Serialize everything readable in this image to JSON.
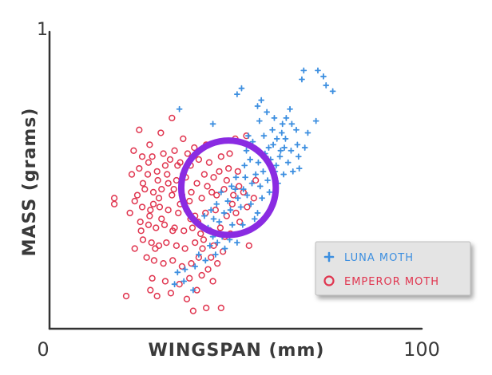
{
  "chart_data": {
    "type": "scatter",
    "title": "",
    "xlabel": "WINGSPAN (mm)",
    "ylabel": "MASS (grams)",
    "xlim": [
      0,
      100
    ],
    "ylim": [
      0,
      1
    ],
    "x_ticks": [
      "0",
      "100"
    ],
    "y_ticks": [
      "1"
    ],
    "grid": false,
    "legend": "bottom-right",
    "series": [
      {
        "name": "LUNA MOTH",
        "marker": "plus",
        "color": "#3d8fe0",
        "points": [
          [
            72.1,
            0.87
          ],
          [
            73.6,
            0.85
          ],
          [
            74.3,
            0.82
          ],
          [
            76.1,
            0.8
          ],
          [
            68.3,
            0.87
          ],
          [
            67.8,
            0.84
          ],
          [
            64.6,
            0.74
          ],
          [
            63.6,
            0.71
          ],
          [
            65.1,
            0.69
          ],
          [
            62.6,
            0.69
          ],
          [
            66.3,
            0.67
          ],
          [
            69.4,
            0.66
          ],
          [
            71.6,
            0.7
          ],
          [
            61.1,
            0.64
          ],
          [
            60.1,
            0.62
          ],
          [
            63.1,
            0.61
          ],
          [
            57.9,
            0.59
          ],
          [
            56.1,
            0.56
          ],
          [
            58.1,
            0.58
          ],
          [
            59.4,
            0.57
          ],
          [
            61.9,
            0.58
          ],
          [
            64.1,
            0.56
          ],
          [
            60.6,
            0.53
          ],
          [
            62.9,
            0.52
          ],
          [
            65.4,
            0.53
          ],
          [
            57.4,
            0.53
          ],
          [
            55.4,
            0.52
          ],
          [
            52.6,
            0.51
          ],
          [
            54.4,
            0.49
          ],
          [
            56.6,
            0.48
          ],
          [
            58.6,
            0.5
          ],
          [
            61.4,
            0.49
          ],
          [
            52.1,
            0.47
          ],
          [
            49.9,
            0.47
          ],
          [
            53.1,
            0.45
          ],
          [
            50.6,
            0.44
          ],
          [
            47.9,
            0.43
          ],
          [
            48.6,
            0.4
          ],
          [
            51.4,
            0.41
          ],
          [
            54.1,
            0.42
          ],
          [
            55.9,
            0.39
          ],
          [
            46.9,
            0.39
          ],
          [
            44.1,
            0.37
          ],
          [
            45.6,
            0.36
          ],
          [
            49.1,
            0.35
          ],
          [
            51.9,
            0.35
          ],
          [
            54.9,
            0.34
          ],
          [
            42.6,
            0.34
          ],
          [
            43.9,
            0.31
          ],
          [
            46.4,
            0.31
          ],
          [
            48.4,
            0.3
          ],
          [
            50.4,
            0.29
          ],
          [
            47.1,
            0.27
          ],
          [
            44.6,
            0.25
          ],
          [
            41.9,
            0.23
          ],
          [
            39.1,
            0.21
          ],
          [
            36.4,
            0.2
          ],
          [
            34.4,
            0.19
          ],
          [
            33.6,
            0.15
          ],
          [
            36.1,
            0.16
          ],
          [
            38.6,
            0.13
          ],
          [
            40.1,
            0.25
          ],
          [
            55.1,
            0.37
          ],
          [
            57.1,
            0.44
          ],
          [
            59.1,
            0.46
          ],
          [
            60.9,
            0.55
          ],
          [
            62.1,
            0.6
          ],
          [
            63.4,
            0.64
          ],
          [
            64.9,
            0.6
          ],
          [
            66.9,
            0.58
          ],
          [
            68.6,
            0.61
          ],
          [
            66.6,
            0.62
          ],
          [
            67.1,
            0.54
          ],
          [
            62.4,
            0.66
          ],
          [
            59.9,
            0.67
          ],
          [
            58.9,
            0.61
          ],
          [
            57.6,
            0.65
          ],
          [
            55.6,
            0.6
          ],
          [
            53.9,
            0.57
          ],
          [
            52.4,
            0.55
          ],
          [
            50.1,
            0.51
          ],
          [
            48.9,
            0.48
          ],
          [
            46.1,
            0.46
          ],
          [
            44.9,
            0.42
          ],
          [
            43.4,
            0.4
          ],
          [
            41.6,
            0.38
          ],
          [
            45.1,
            0.29
          ],
          [
            43.1,
            0.28
          ],
          [
            34.9,
            0.74
          ],
          [
            43.9,
            0.69
          ],
          [
            50.4,
            0.79
          ],
          [
            51.6,
            0.81
          ],
          [
            56.9,
            0.77
          ],
          [
            55.9,
            0.75
          ],
          [
            58.4,
            0.73
          ],
          [
            60.4,
            0.71
          ],
          [
            53.4,
            0.65
          ],
          [
            54.6,
            0.63
          ],
          [
            56.4,
            0.7
          ],
          [
            52.9,
            0.6
          ]
        ]
      },
      {
        "name": "EMPEROR MOTH",
        "marker": "circle",
        "color": "#e0354f",
        "points": [
          [
            24.1,
            0.67
          ],
          [
            26.9,
            0.62
          ],
          [
            29.9,
            0.66
          ],
          [
            32.9,
            0.71
          ],
          [
            35.9,
            0.64
          ],
          [
            38.9,
            0.61
          ],
          [
            42.1,
            0.62
          ],
          [
            49.9,
            0.64
          ],
          [
            52.9,
            0.65
          ],
          [
            22.6,
            0.6
          ],
          [
            24.9,
            0.58
          ],
          [
            27.6,
            0.58
          ],
          [
            30.6,
            0.59
          ],
          [
            32.4,
            0.57
          ],
          [
            35.1,
            0.56
          ],
          [
            37.9,
            0.55
          ],
          [
            40.1,
            0.57
          ],
          [
            42.9,
            0.56
          ],
          [
            46.1,
            0.58
          ],
          [
            24.1,
            0.54
          ],
          [
            26.4,
            0.52
          ],
          [
            28.9,
            0.53
          ],
          [
            31.6,
            0.52
          ],
          [
            34.1,
            0.5
          ],
          [
            36.6,
            0.51
          ],
          [
            39.6,
            0.49
          ],
          [
            41.6,
            0.52
          ],
          [
            44.1,
            0.51
          ],
          [
            48.1,
            0.54
          ],
          [
            50.6,
            0.53
          ],
          [
            25.6,
            0.47
          ],
          [
            27.9,
            0.46
          ],
          [
            30.1,
            0.47
          ],
          [
            32.9,
            0.45
          ],
          [
            35.6,
            0.45
          ],
          [
            38.1,
            0.46
          ],
          [
            40.9,
            0.44
          ],
          [
            43.6,
            0.46
          ],
          [
            46.9,
            0.47
          ],
          [
            49.4,
            0.45
          ],
          [
            52.1,
            0.46
          ],
          [
            17.4,
            0.44
          ],
          [
            17.4,
            0.42
          ],
          [
            22.9,
            0.43
          ],
          [
            24.9,
            0.41
          ],
          [
            27.1,
            0.4
          ],
          [
            29.6,
            0.41
          ],
          [
            31.9,
            0.4
          ],
          [
            34.6,
            0.39
          ],
          [
            36.9,
            0.4
          ],
          [
            39.1,
            0.38
          ],
          [
            41.9,
            0.39
          ],
          [
            44.6,
            0.4
          ],
          [
            47.6,
            0.38
          ],
          [
            50.1,
            0.39
          ],
          [
            24.4,
            0.36
          ],
          [
            26.6,
            0.35
          ],
          [
            28.6,
            0.34
          ],
          [
            30.9,
            0.35
          ],
          [
            33.6,
            0.34
          ],
          [
            36.1,
            0.33
          ],
          [
            38.4,
            0.34
          ],
          [
            40.6,
            0.32
          ],
          [
            43.1,
            0.33
          ],
          [
            45.9,
            0.34
          ],
          [
            48.6,
            0.32
          ],
          [
            25.1,
            0.3
          ],
          [
            27.4,
            0.29
          ],
          [
            29.4,
            0.28
          ],
          [
            31.4,
            0.29
          ],
          [
            34.1,
            0.28
          ],
          [
            36.4,
            0.27
          ],
          [
            39.1,
            0.29
          ],
          [
            41.1,
            0.27
          ],
          [
            44.1,
            0.28
          ],
          [
            46.6,
            0.26
          ],
          [
            26.1,
            0.24
          ],
          [
            28.1,
            0.23
          ],
          [
            30.6,
            0.22
          ],
          [
            33.1,
            0.23
          ],
          [
            35.6,
            0.21
          ],
          [
            38.1,
            0.22
          ],
          [
            40.1,
            0.24
          ],
          [
            42.6,
            0.2
          ],
          [
            27.6,
            0.17
          ],
          [
            31.1,
            0.16
          ],
          [
            34.9,
            0.15
          ],
          [
            37.6,
            0.17
          ],
          [
            40.9,
            0.18
          ],
          [
            43.9,
            0.16
          ],
          [
            28.9,
            0.11
          ],
          [
            32.6,
            0.12
          ],
          [
            36.9,
            0.1
          ],
          [
            39.6,
            0.13
          ],
          [
            27.1,
            0.13
          ],
          [
            20.6,
            0.11
          ],
          [
            38.6,
            0.06
          ],
          [
            46.1,
            0.07
          ],
          [
            42.1,
            0.07
          ],
          [
            33.1,
            0.33
          ],
          [
            30.1,
            0.37
          ],
          [
            27.9,
            0.42
          ],
          [
            25.1,
            0.49
          ],
          [
            22.1,
            0.52
          ],
          [
            23.6,
            0.45
          ],
          [
            21.6,
            0.39
          ],
          [
            26.6,
            0.56
          ],
          [
            29.1,
            0.5
          ],
          [
            31.1,
            0.55
          ],
          [
            33.6,
            0.6
          ],
          [
            35.9,
            0.52
          ],
          [
            37.6,
            0.43
          ],
          [
            39.9,
            0.36
          ],
          [
            41.4,
            0.3
          ],
          [
            43.4,
            0.24
          ],
          [
            45.1,
            0.22
          ],
          [
            47.1,
            0.31
          ],
          [
            49.1,
            0.42
          ],
          [
            51.1,
            0.36
          ],
          [
            53.6,
            0.28
          ],
          [
            45.6,
            0.53
          ],
          [
            47.6,
            0.5
          ],
          [
            50.9,
            0.48
          ],
          [
            53.1,
            0.41
          ],
          [
            54.9,
            0.44
          ],
          [
            55.4,
            0.5
          ],
          [
            48.4,
            0.59
          ],
          [
            44.9,
            0.45
          ],
          [
            42.4,
            0.48
          ],
          [
            37.1,
            0.59
          ],
          [
            34.4,
            0.55
          ],
          [
            31.9,
            0.49
          ],
          [
            29.4,
            0.44
          ],
          [
            26.9,
            0.38
          ],
          [
            24.6,
            0.33
          ],
          [
            22.9,
            0.27
          ],
          [
            37.9,
            0.37
          ],
          [
            35.1,
            0.42
          ],
          [
            33.4,
            0.47
          ],
          [
            28.4,
            0.27
          ]
        ]
      }
    ],
    "highlight": {
      "shape": "ring",
      "color": "#8a2be2",
      "center": [
        48.1,
        0.475
      ],
      "radius_x": 12.7
    }
  }
}
